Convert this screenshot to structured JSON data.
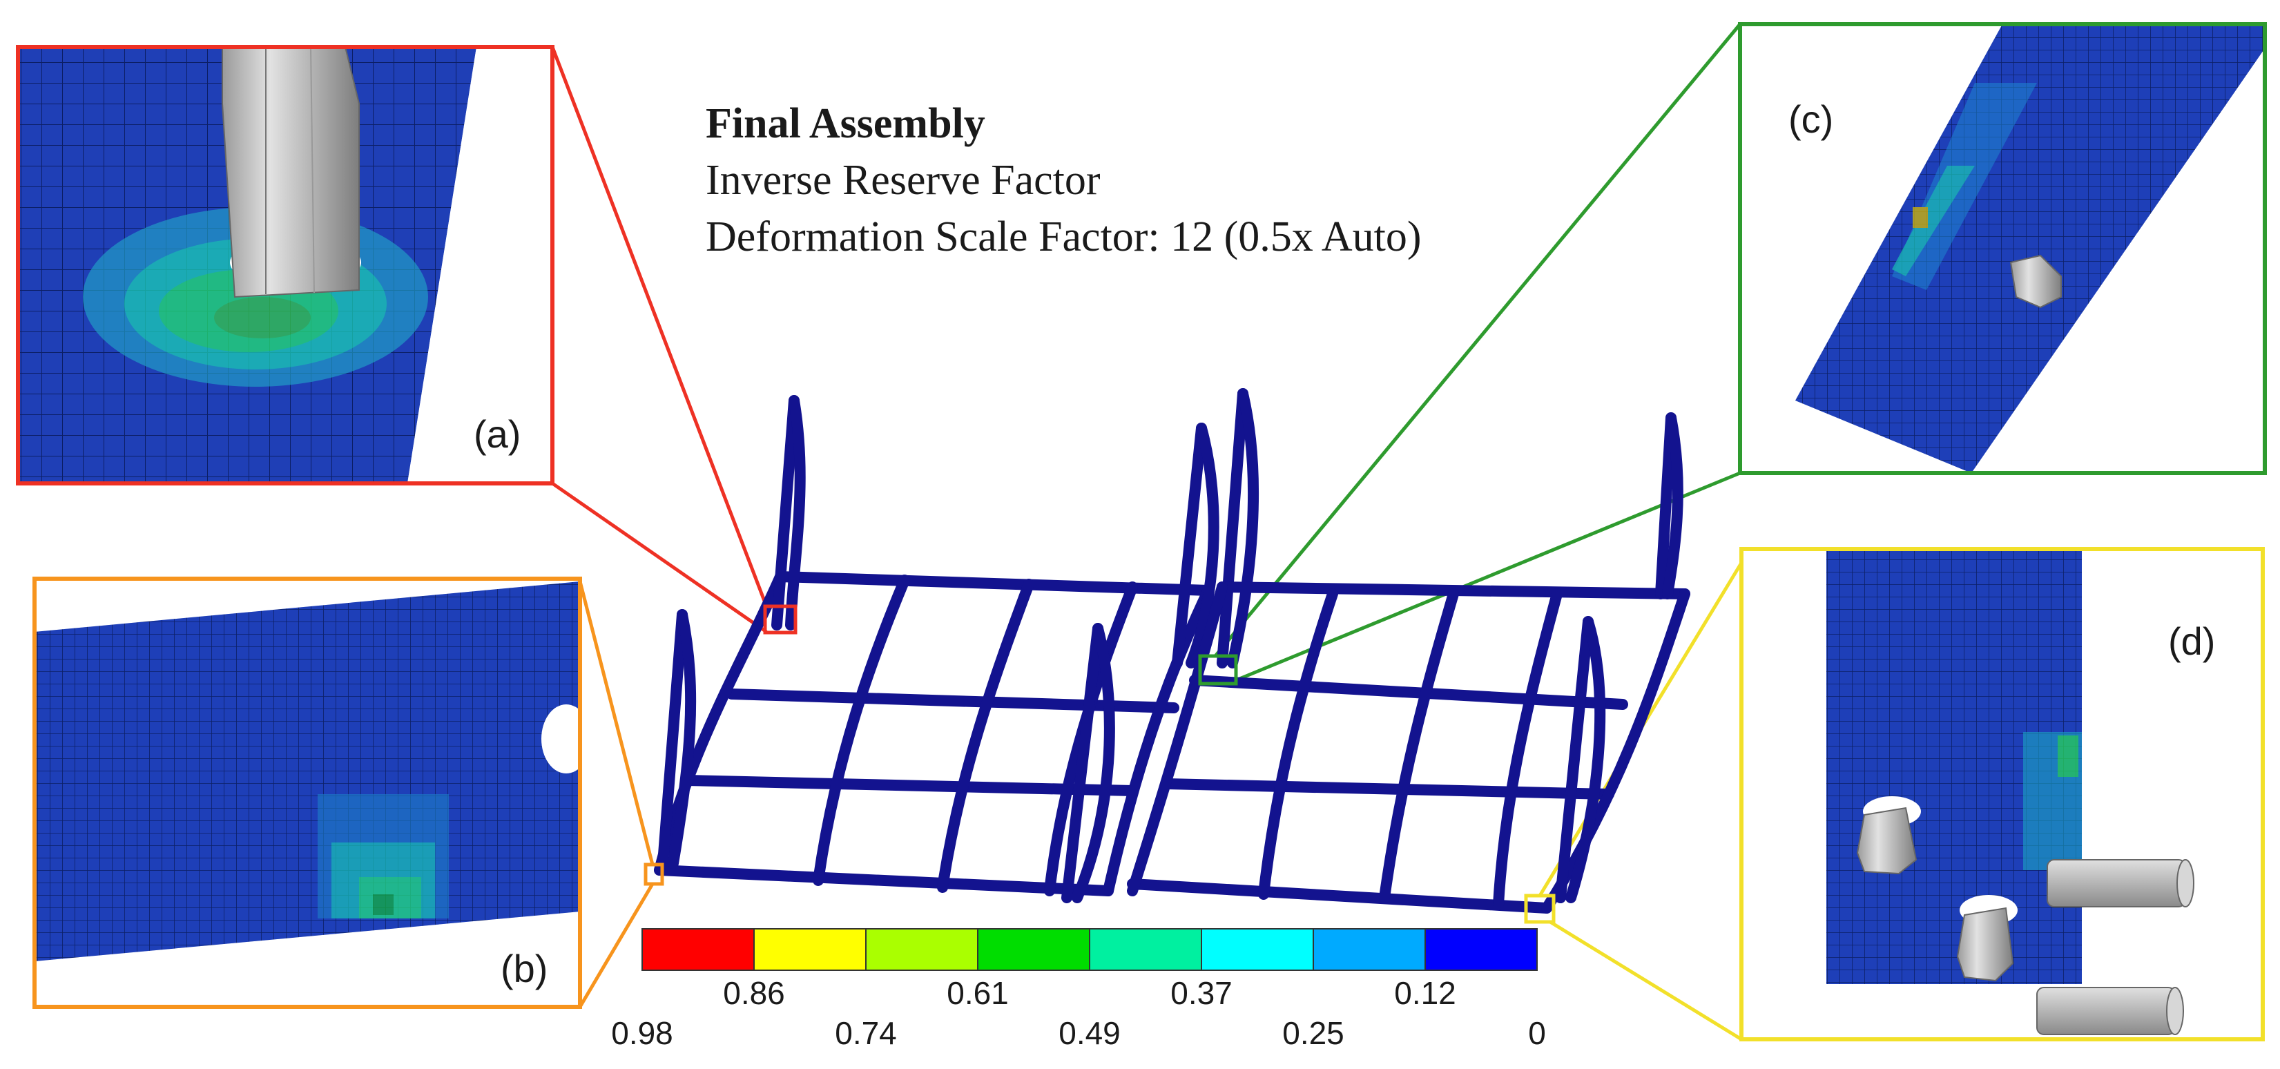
{
  "title": {
    "line1": "Final Assembly",
    "line2": "Inverse Reserve Factor",
    "line3": "Deformation Scale Factor: 12 (0.5x Auto)"
  },
  "insets": {
    "a": {
      "label": "(a)",
      "border_color": "#ee3124"
    },
    "b": {
      "label": "(b)",
      "border_color": "#f7941d"
    },
    "c": {
      "label": "(c)",
      "border_color": "#2e9b2e"
    },
    "d": {
      "label": "(d)",
      "border_color": "#f2e02a"
    }
  },
  "legend": {
    "colors": [
      "#ff0000",
      "#ffff00",
      "#aaff00",
      "#00dd00",
      "#00f0a0",
      "#00ffff",
      "#00aaff",
      "#0000ff"
    ],
    "upper_ticks": [
      "0.86",
      "0.61",
      "0.37",
      "0.12"
    ],
    "lower_ticks": [
      "0.98",
      "0.74",
      "0.49",
      "0.25",
      "0"
    ]
  },
  "colors": {
    "frame_blue": "#13138f",
    "mesh_blue": "#1e3fb8",
    "bolt_grey": "#b8b8b8"
  }
}
